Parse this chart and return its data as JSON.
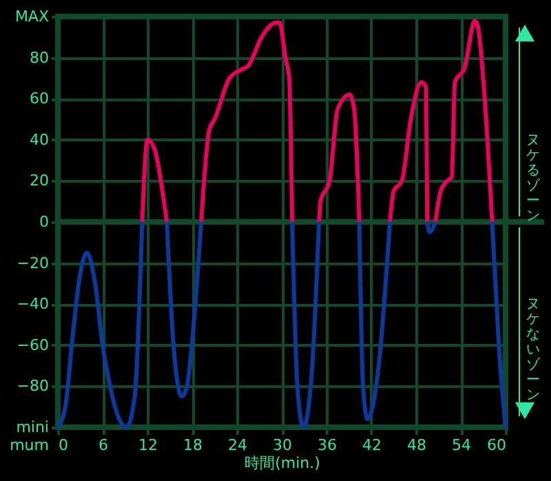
{
  "chart_data": {
    "type": "line",
    "xlabel": "時間(min.)",
    "x": [
      0,
      1,
      2,
      3,
      3.9,
      5,
      6,
      7,
      8,
      9.2,
      10.3,
      11.3,
      12,
      13,
      13.8,
      14.6,
      15.5,
      16.6,
      17.3,
      18.2,
      19.2,
      20.3,
      21,
      23,
      24.5,
      25.5,
      27.3,
      29.2,
      29.7,
      30.5,
      31,
      31.4,
      32.1,
      32.9,
      34,
      35,
      35.2,
      36.4,
      37.5,
      39.1,
      39.7,
      40.4,
      40.9,
      41.5,
      43,
      44.5,
      45,
      46.1,
      47.3,
      48.7,
      49.3,
      49.5,
      49.8,
      50.6,
      51.3,
      52.2,
      52.8,
      53.2,
      54.5,
      55.9,
      56.3,
      57,
      58.2,
      59.1,
      60
    ],
    "series": [
      {
        "color": "#e8005c",
        "values": [
          null,
          null,
          null,
          null,
          null,
          null,
          null,
          null,
          null,
          null,
          null,
          0,
          40,
          35,
          20,
          0,
          null,
          null,
          null,
          null,
          0,
          45,
          50,
          70,
          74,
          76,
          90,
          97,
          97,
          80,
          70,
          0,
          null,
          null,
          null,
          0,
          10,
          20,
          55,
          62,
          55,
          0,
          null,
          null,
          null,
          0,
          15,
          20,
          50,
          68,
          66,
          0,
          null,
          0,
          15,
          20,
          22,
          68,
          75,
          98,
          95,
          70,
          0,
          null,
          null
        ]
      },
      {
        "color": "#0a3a9c",
        "values": [
          -100,
          -90,
          -55,
          -25,
          -15,
          -30,
          -60,
          -80,
          -94,
          -100,
          -85,
          0,
          null,
          null,
          null,
          0,
          -60,
          -85,
          -80,
          -50,
          0,
          null,
          null,
          null,
          null,
          null,
          null,
          null,
          null,
          null,
          null,
          0,
          -80,
          -100,
          -75,
          0,
          null,
          null,
          null,
          null,
          null,
          0,
          -80,
          -96,
          -70,
          0,
          null,
          null,
          null,
          null,
          null,
          0,
          -5,
          0,
          null,
          null,
          null,
          null,
          null,
          null,
          null,
          null,
          0,
          -60,
          -100
        ]
      }
    ],
    "xlim": [
      0,
      60
    ],
    "xticks": [
      0,
      6,
      12,
      18,
      24,
      30,
      36,
      42,
      48,
      54,
      60
    ],
    "ylim": [
      -100,
      100
    ],
    "yticks": [
      {
        "value": -100,
        "label": "mini mum"
      },
      -80,
      -60,
      -40,
      -20,
      0,
      20,
      40,
      60,
      80,
      {
        "value": 100,
        "label": "MAX"
      }
    ],
    "grid": true,
    "ref_lines": [
      {
        "axis": "y",
        "value": 0,
        "color": "#0f4a2a"
      }
    ],
    "annotations": [
      "ヌケるゾーン",
      "ヌケないゾーン"
    ]
  }
}
